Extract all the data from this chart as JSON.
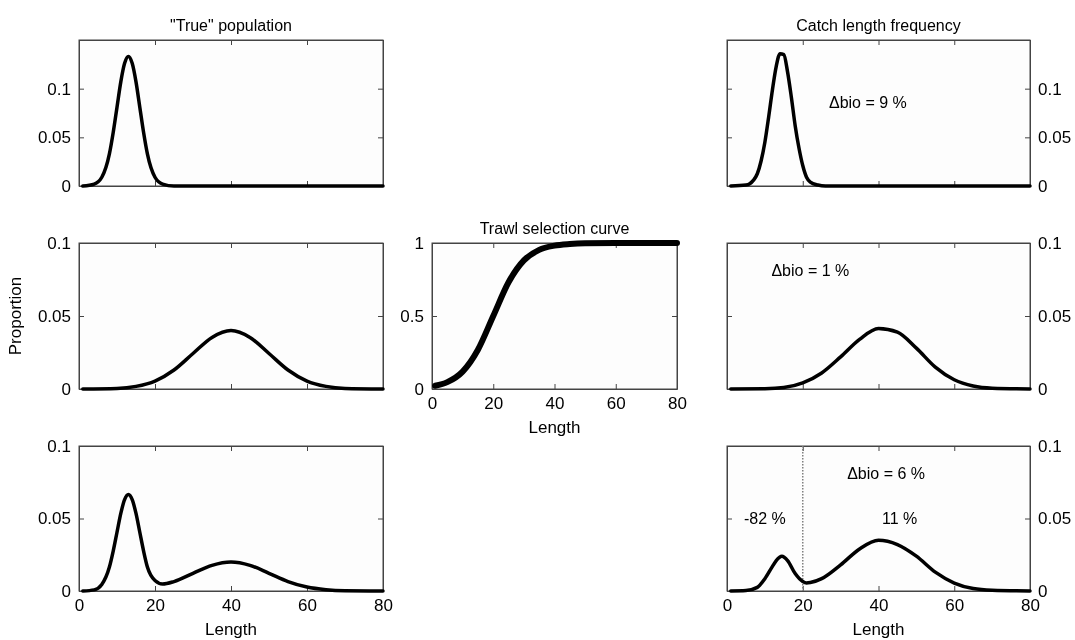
{
  "chart_data": [
    {
      "type": "line",
      "title": "\"True\" population",
      "xlim": [
        0,
        80
      ],
      "xticks": [
        0,
        20,
        40,
        60,
        80
      ],
      "ylim": [
        0,
        0.15
      ],
      "yticks": [
        0,
        0.05,
        0.1
      ],
      "tick_labels": "y",
      "x": [
        1,
        4,
        6,
        8,
        9,
        10,
        11,
        12,
        13,
        14,
        15,
        16,
        17,
        18,
        20,
        22,
        25,
        40,
        80
      ],
      "series": [
        {
          "color": "#000000",
          "values": [
            0,
            0.002,
            0.009,
            0.033,
            0.055,
            0.081,
            0.107,
            0.126,
            0.133,
            0.126,
            0.107,
            0.081,
            0.055,
            0.033,
            0.009,
            0.002,
            0,
            0,
            0
          ]
        }
      ]
    },
    {
      "type": "line",
      "title": "Catch length frequency",
      "xlim": [
        0,
        80
      ],
      "xticks": [
        0,
        20,
        40,
        60,
        80
      ],
      "y2lim": [
        0,
        0.15
      ],
      "y2ticks": [
        0,
        0.05,
        0.1
      ],
      "tick_labels": "y",
      "x": [
        1,
        5,
        6,
        7,
        8,
        9,
        10,
        11,
        12,
        13,
        14,
        15,
        16,
        17,
        18,
        19,
        20,
        21,
        22,
        24,
        26,
        80
      ],
      "series": [
        {
          "color": "#000000",
          "axis": "y2",
          "values": [
            0,
            0.001,
            0.0023,
            0.006,
            0.0126,
            0.0257,
            0.045,
            0.071,
            0.099,
            0.123,
            0.136,
            0.135,
            0.117,
            0.091,
            0.062,
            0.039,
            0.021,
            0.009,
            0.004,
            0.001,
            0,
            0
          ]
        }
      ],
      "annotations": [
        "Δbio = 9 %"
      ]
    },
    {
      "type": "line",
      "ylabel": "Proportion",
      "xlim": [
        0,
        80
      ],
      "xticks": [
        0,
        20,
        40,
        60,
        80
      ],
      "ylim": [
        0,
        0.1
      ],
      "yticks": [
        0,
        0.05,
        0.1
      ],
      "tick_labels": "y",
      "x": [
        1,
        10,
        15,
        20,
        25,
        30,
        35,
        40,
        45,
        50,
        55,
        60,
        65,
        70,
        80
      ],
      "series": [
        {
          "color": "#000000",
          "values": [
            0,
            0.0004,
            0.0018,
            0.0054,
            0.013,
            0.0243,
            0.0353,
            0.04,
            0.0353,
            0.0243,
            0.013,
            0.0054,
            0.0018,
            0.0004,
            0
          ]
        }
      ]
    },
    {
      "type": "line",
      "title": "Trawl selection curve",
      "xlabel": "Length",
      "xlim": [
        0,
        80
      ],
      "xticks": [
        0,
        20,
        40,
        60,
        80
      ],
      "ylim": [
        0,
        1
      ],
      "yticks": [
        0,
        0.5,
        1
      ],
      "x": [
        1,
        5,
        10,
        15,
        20,
        25,
        30,
        35,
        40,
        45,
        50,
        60,
        80
      ],
      "series": [
        {
          "color": "#000000",
          "values": [
            0.022,
            0.047,
            0.119,
            0.269,
            0.5,
            0.731,
            0.881,
            0.953,
            0.982,
            0.993,
            0.998,
            1,
            1
          ]
        }
      ]
    },
    {
      "type": "line",
      "xlim": [
        0,
        80
      ],
      "xticks": [
        0,
        20,
        40,
        60,
        80
      ],
      "y2lim": [
        0,
        0.1
      ],
      "y2ticks": [
        0,
        0.05,
        0.1
      ],
      "tick_labels": "y",
      "x": [
        1,
        10,
        15,
        20,
        25,
        30,
        35,
        40,
        45,
        50,
        55,
        60,
        65,
        70,
        80
      ],
      "series": [
        {
          "color": "#000000",
          "axis": "y2",
          "values": [
            0,
            0.0002,
            0.001,
            0.0042,
            0.011,
            0.022,
            0.034,
            0.0415,
            0.039,
            0.028,
            0.015,
            0.0063,
            0.002,
            0.0005,
            0
          ]
        }
      ],
      "annotations": [
        "Δbio = 1 %"
      ]
    },
    {
      "type": "line",
      "xlabel": "Length",
      "xlim": [
        0,
        80
      ],
      "xticks": [
        0,
        20,
        40,
        60,
        80
      ],
      "ylim": [
        0,
        0.1
      ],
      "yticks": [
        0,
        0.05,
        0.1
      ],
      "x": [
        1,
        4,
        6,
        8,
        9,
        10,
        11,
        12,
        13,
        14,
        15,
        16,
        17,
        18,
        20,
        22,
        25,
        30,
        35,
        40,
        45,
        50,
        55,
        60,
        65,
        70,
        80
      ],
      "series": [
        {
          "color": "#000000",
          "values": [
            0,
            0.0008,
            0.0045,
            0.0165,
            0.0275,
            0.0405,
            0.0535,
            0.063,
            0.0665,
            0.063,
            0.0535,
            0.0405,
            0.0275,
            0.0165,
            0.0072,
            0.0048,
            0.0065,
            0.0122,
            0.0177,
            0.02,
            0.0177,
            0.0122,
            0.0065,
            0.0027,
            0.0009,
            0.0002,
            0
          ]
        }
      ]
    },
    {
      "type": "line",
      "xlabel": "Length",
      "xlim": [
        0,
        80
      ],
      "xticks": [
        0,
        20,
        40,
        60,
        80
      ],
      "y2lim": [
        0,
        0.1
      ],
      "y2ticks": [
        0,
        0.05,
        0.1
      ],
      "x": [
        1,
        5,
        8,
        10,
        12,
        13,
        14.5,
        16,
        18,
        20,
        21,
        22,
        25,
        30,
        35,
        40,
        45,
        50,
        55,
        60,
        65,
        70,
        80
      ],
      "series": [
        {
          "color": "#000000",
          "axis": "y2",
          "values": [
            0,
            0.0003,
            0.0025,
            0.0085,
            0.017,
            0.021,
            0.024,
            0.021,
            0.012,
            0.0065,
            0.0055,
            0.0058,
            0.0085,
            0.018,
            0.029,
            0.035,
            0.032,
            0.024,
            0.013,
            0.0055,
            0.0017,
            0.0005,
            0
          ]
        }
      ],
      "ref_lines": [
        {
          "axis": "x",
          "value": 20,
          "color": "#808080",
          "line_style": "dotted"
        }
      ],
      "annotations": [
        "Δbio = 6 %",
        "-82 %",
        "11 %"
      ]
    }
  ]
}
